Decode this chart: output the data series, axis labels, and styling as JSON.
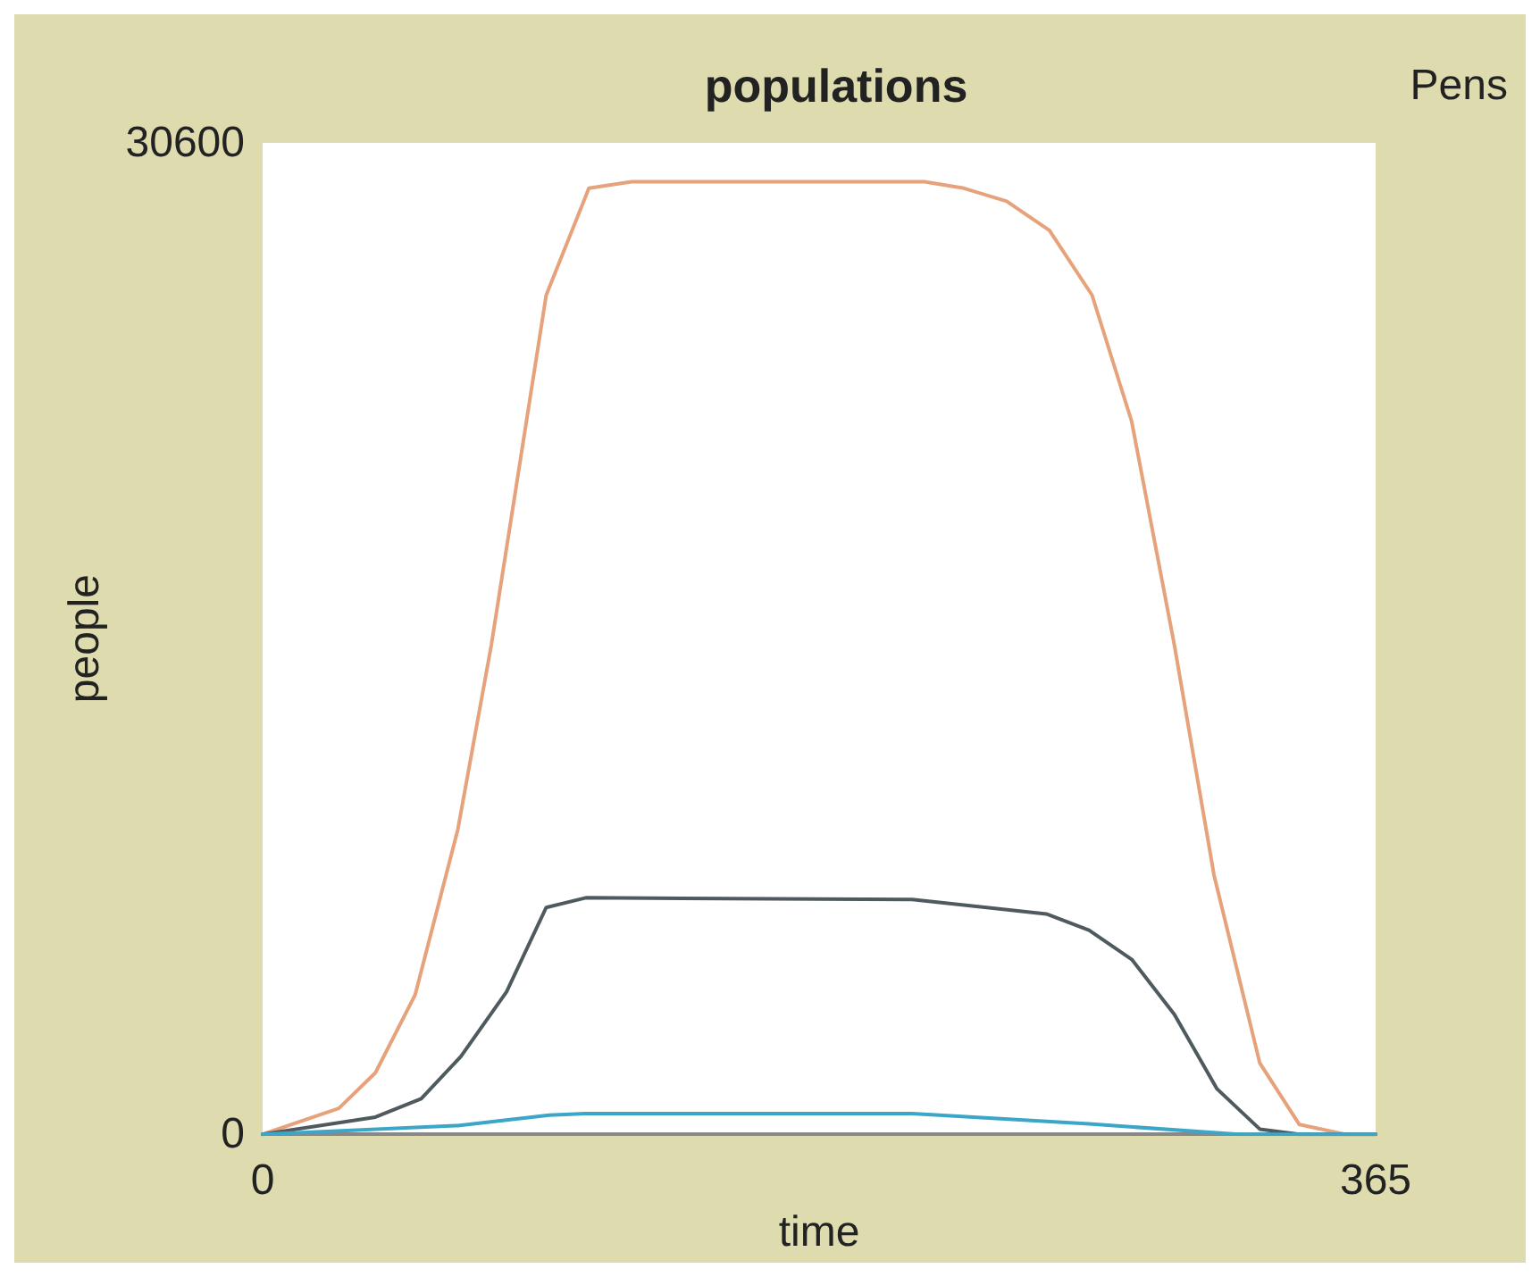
{
  "chart_data": {
    "type": "line",
    "title": "populations",
    "xlabel": "time",
    "ylabel": "people",
    "annotations": [
      "Pens"
    ],
    "xlim": [
      0,
      365
    ],
    "xticks": [
      0,
      365
    ],
    "ylim": [
      0,
      30600
    ],
    "yticks": [
      0,
      30600
    ],
    "series": [
      {
        "color": "#e6a27a",
        "x": [
          0,
          25,
          37,
          50,
          64,
          75,
          93,
          107,
          121,
          217,
          230,
          244,
          258,
          272,
          285,
          299,
          312,
          327,
          340,
          355,
          365
        ],
        "values": [
          0,
          800,
          1900,
          4300,
          9400,
          15100,
          25900,
          29200,
          29400,
          29400,
          29200,
          28800,
          27900,
          25900,
          22000,
          15100,
          8000,
          2200,
          300,
          0,
          0
        ]
      },
      {
        "color": "#4f5a5e",
        "x": [
          0,
          37,
          52,
          65,
          80,
          93,
          106,
          213,
          257,
          271,
          285,
          299,
          313,
          327,
          340,
          365
        ],
        "values": [
          0,
          530,
          1100,
          2400,
          4400,
          7000,
          7300,
          7250,
          6800,
          6300,
          5400,
          3700,
          1400,
          160,
          0,
          0
        ]
      },
      {
        "color": "#3ba6c8",
        "x": [
          0,
          64,
          94,
          106,
          213,
          271,
          320,
          365
        ],
        "values": [
          0,
          270,
          590,
          640,
          640,
          320,
          0,
          0
        ]
      }
    ]
  }
}
